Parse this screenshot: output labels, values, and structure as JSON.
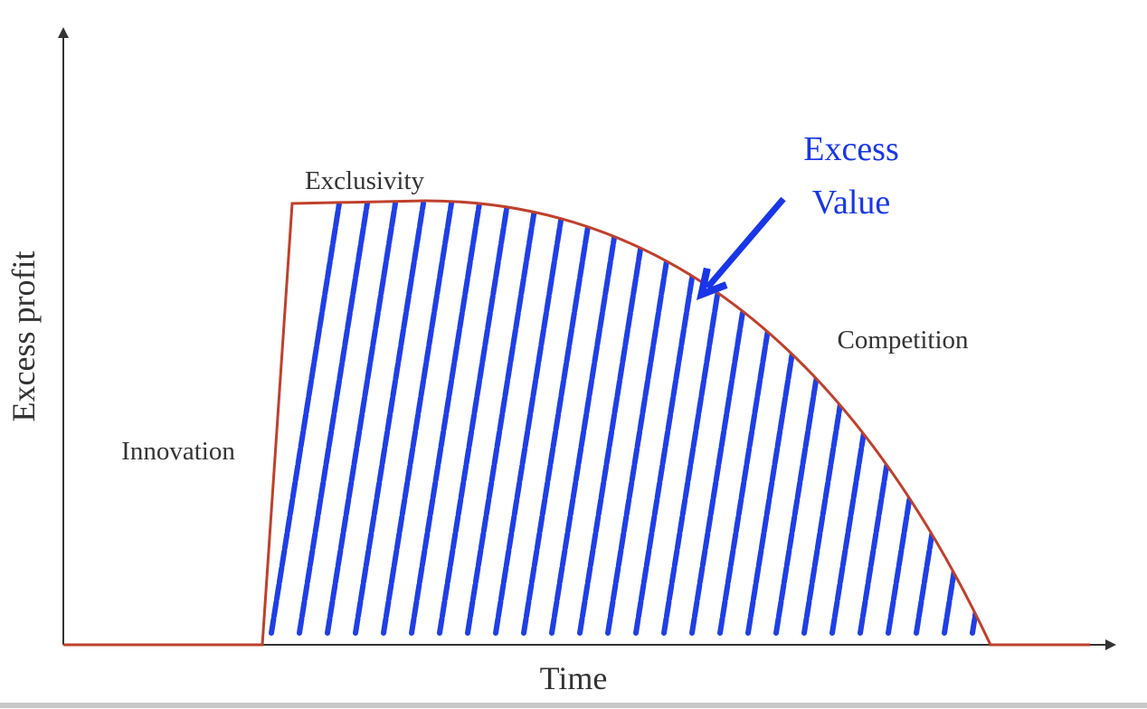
{
  "axes": {
    "x_label": "Time",
    "y_label": "Excess profit"
  },
  "phases": [
    "Innovation",
    "Exclusivity",
    "Competition"
  ],
  "annotation": {
    "lines": [
      "Excess",
      "Value"
    ]
  }
}
